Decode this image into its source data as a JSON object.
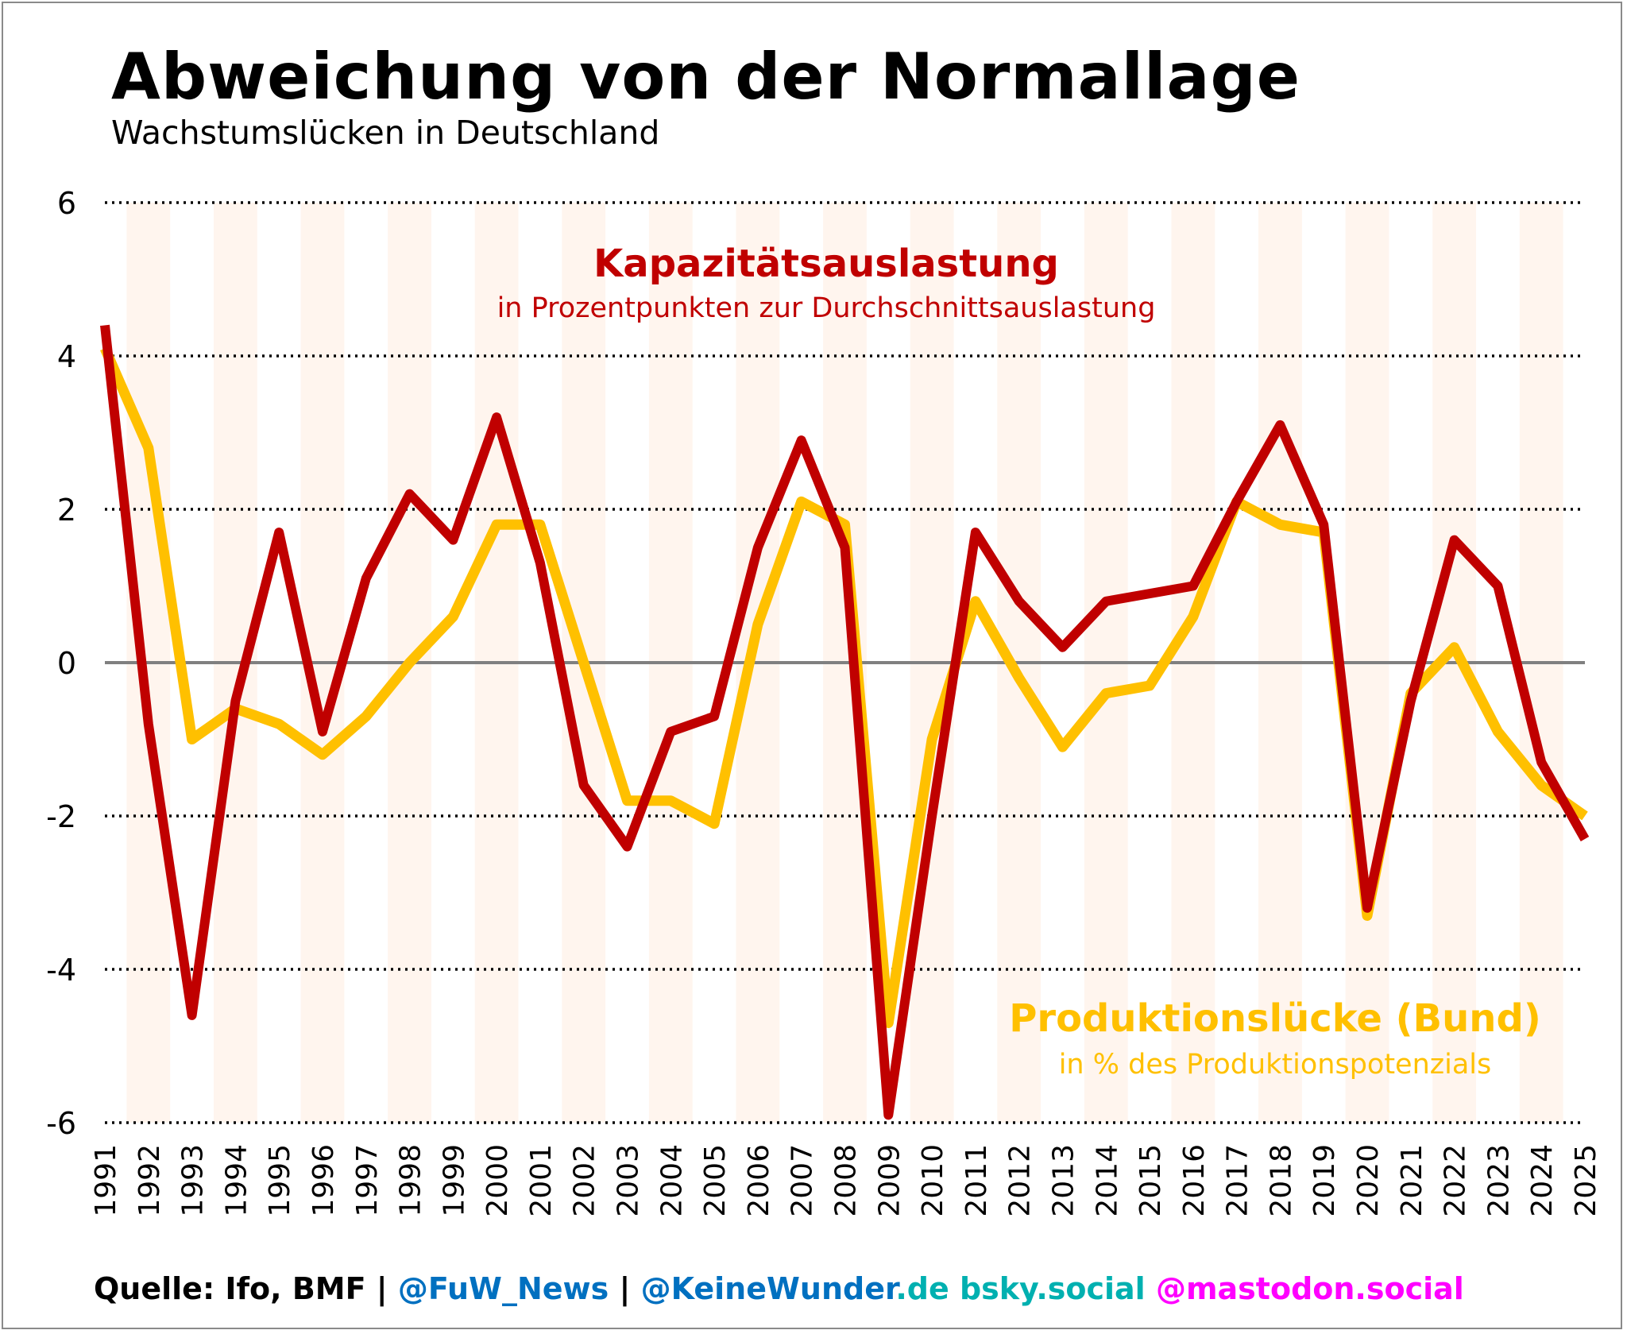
{
  "header": {
    "title": "Abweichung von der Normallage",
    "subtitle": "Wachstumslücken in Deutschland"
  },
  "chart_data": {
    "type": "line",
    "categories": [
      "1991",
      "1992",
      "1993",
      "1994",
      "1995",
      "1996",
      "1997",
      "1998",
      "1999",
      "2000",
      "2001",
      "2002",
      "2003",
      "2004",
      "2005",
      "2006",
      "2007",
      "2008",
      "2009",
      "2010",
      "2011",
      "2012",
      "2013",
      "2014",
      "2015",
      "2016",
      "2017",
      "2018",
      "2019",
      "2020",
      "2021",
      "2022",
      "2023",
      "2024",
      "2025"
    ],
    "ylim": [
      -6,
      6
    ],
    "yticks": [
      "-6",
      "-4",
      "-2",
      "0",
      "2",
      "4",
      "6"
    ],
    "series": [
      {
        "name": "Produktionslücke (Bund)",
        "note": "in % des Produktionspotenzials",
        "color": "#FFC000",
        "values": [
          4.1,
          2.8,
          -1.0,
          -0.6,
          -0.8,
          -1.2,
          -0.7,
          0.0,
          0.6,
          1.8,
          1.8,
          0.0,
          -1.8,
          -1.8,
          -2.1,
          0.5,
          2.1,
          1.8,
          -4.7,
          -1.0,
          0.8,
          -0.2,
          -1.1,
          -0.4,
          -0.3,
          0.6,
          2.1,
          1.8,
          1.7,
          -3.3,
          -0.4,
          0.2,
          -0.9,
          -1.6,
          -2.0
        ]
      },
      {
        "name": "Kapazitätsauslastung",
        "note": "in Prozentpunkten zur Durchschnittsauslastung",
        "color": "#C00000",
        "values": [
          4.4,
          -0.8,
          -4.6,
          -0.5,
          1.7,
          -0.9,
          1.1,
          2.2,
          1.6,
          3.2,
          1.3,
          -1.6,
          -2.4,
          -0.9,
          -0.7,
          1.5,
          2.9,
          1.5,
          -5.9,
          -2.0,
          1.7,
          0.8,
          0.2,
          0.8,
          0.9,
          1.0,
          2.1,
          3.1,
          1.8,
          -3.2,
          -0.5,
          1.6,
          1.0,
          -1.3,
          -2.3
        ]
      }
    ],
    "band_color": "#FFF5EE",
    "zero_line_color": "#808080"
  },
  "footer": {
    "source": "Quelle: Ifo, BMF | ",
    "handle1": "@FuW_News",
    "sep": " | ",
    "handle2": "@KeineWunder",
    "domain": ".de ",
    "bsky": "bsky.social ",
    "mastodon": "@mastodon.social",
    "colors": {
      "source": "#000000",
      "handle": "#0070C0",
      "domain": "#00B0B0",
      "mastodon": "#FF00FF"
    }
  }
}
